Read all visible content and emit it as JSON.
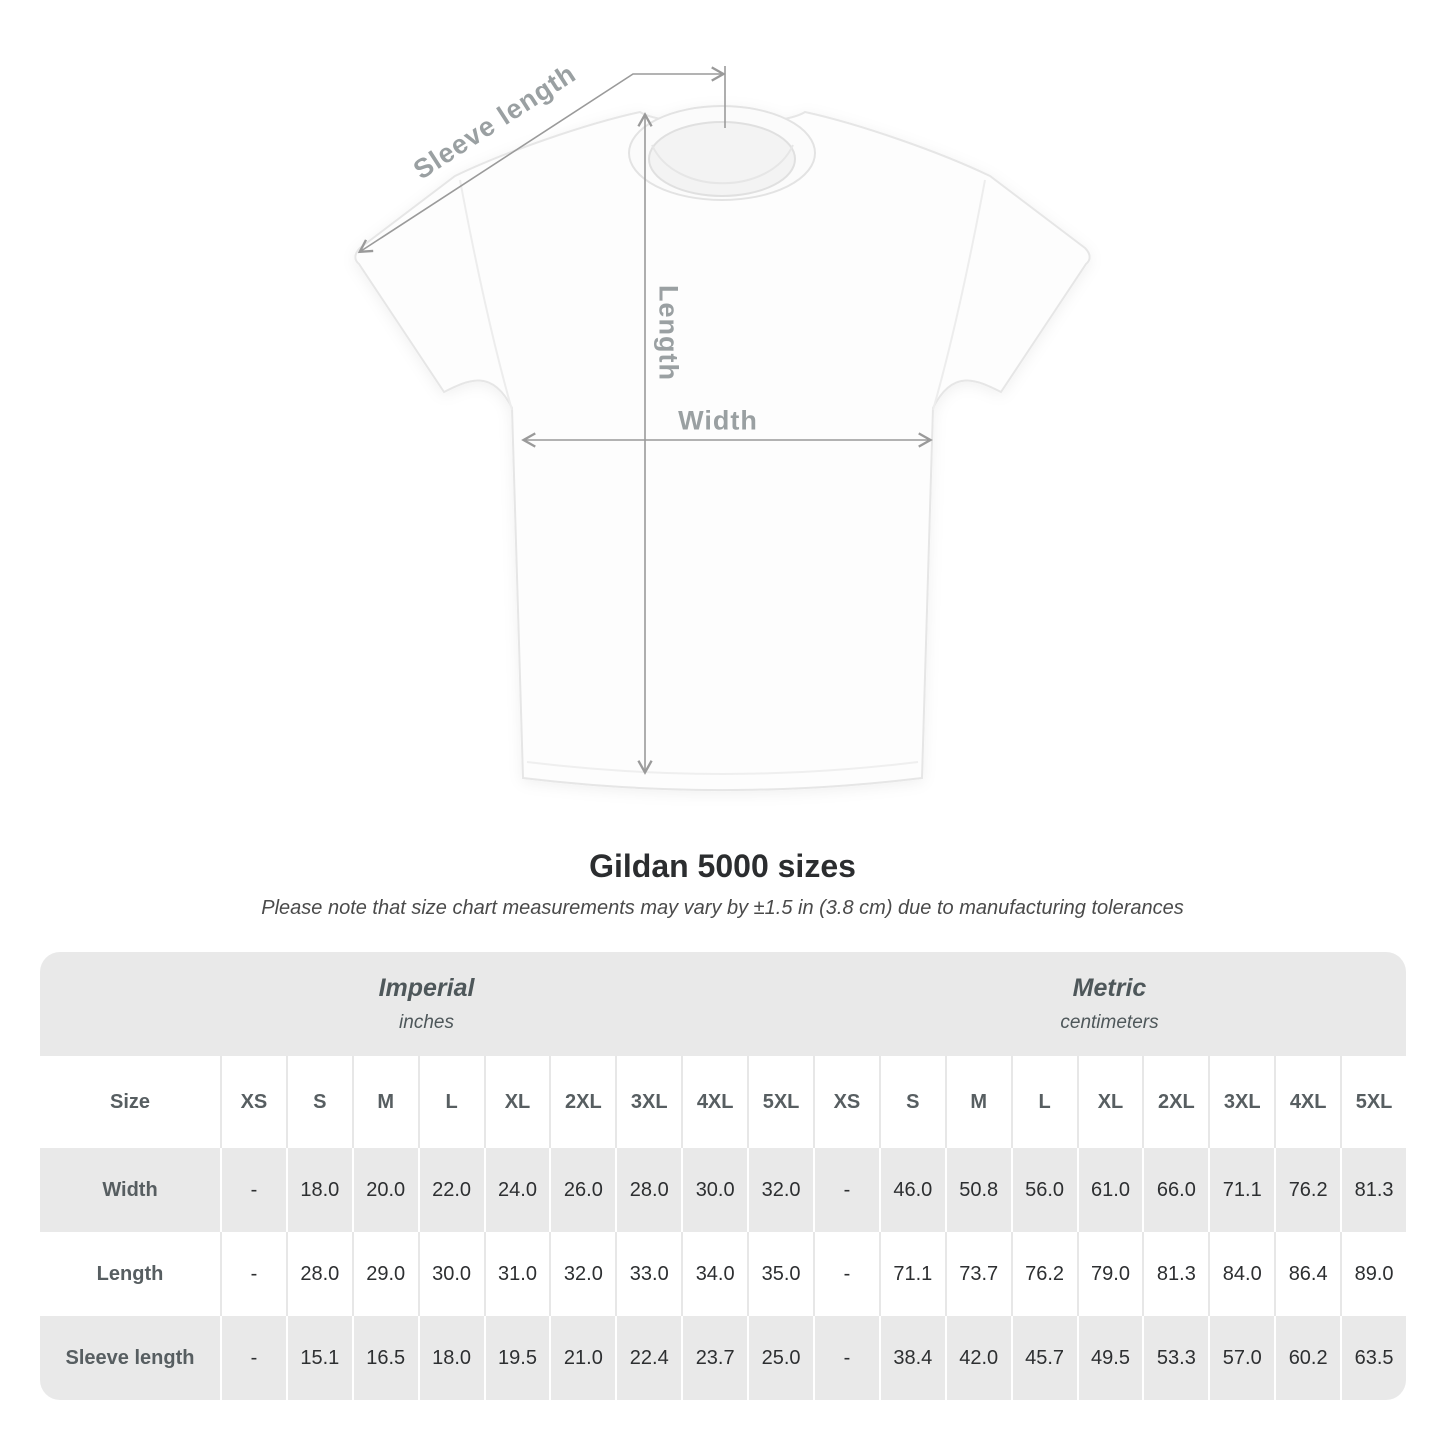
{
  "diagram": {
    "labels": {
      "sleeve_length": "Sleeve length",
      "length": "Length",
      "width": "Width"
    }
  },
  "heading": {
    "title": "Gildan 5000 sizes",
    "note": "Please note that size chart measurements may vary by ±1.5 in (3.8 cm) due to manufacturing tolerances"
  },
  "size_chart": {
    "corner_label": "Size",
    "unit_groups": [
      {
        "name": "Imperial",
        "unit": "inches"
      },
      {
        "name": "Metric",
        "unit": "centimeters"
      }
    ],
    "sizes": [
      "XS",
      "S",
      "M",
      "L",
      "XL",
      "2XL",
      "3XL",
      "4XL",
      "5XL"
    ],
    "rows": [
      {
        "label": "Width",
        "imperial": [
          "-",
          "18.0",
          "20.0",
          "22.0",
          "24.0",
          "26.0",
          "28.0",
          "30.0",
          "32.0"
        ],
        "metric": [
          "-",
          "46.0",
          "50.8",
          "56.0",
          "61.0",
          "66.0",
          "71.1",
          "76.2",
          "81.3"
        ]
      },
      {
        "label": "Length",
        "imperial": [
          "-",
          "28.0",
          "29.0",
          "30.0",
          "31.0",
          "32.0",
          "33.0",
          "34.0",
          "35.0"
        ],
        "metric": [
          "-",
          "71.1",
          "73.7",
          "76.2",
          "79.0",
          "81.3",
          "84.0",
          "86.4",
          "89.0"
        ]
      },
      {
        "label": "Sleeve length",
        "imperial": [
          "-",
          "15.1",
          "16.5",
          "18.0",
          "19.5",
          "21.0",
          "22.4",
          "23.7",
          "25.0"
        ],
        "metric": [
          "-",
          "38.4",
          "42.0",
          "45.7",
          "49.5",
          "53.3",
          "57.0",
          "60.2",
          "63.5"
        ]
      }
    ]
  },
  "colors": {
    "stripe_gray": "#e9e9e9",
    "arrow_gray": "#9a9a9a",
    "label_gray": "#9aa0a2",
    "value_text": "#2d2f31",
    "header_text": "#575e61"
  }
}
